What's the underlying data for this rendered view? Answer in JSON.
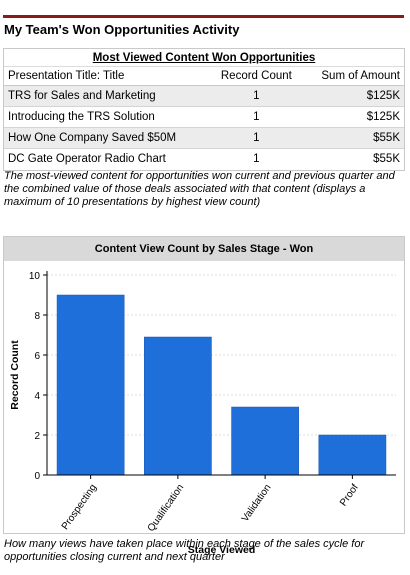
{
  "page": {
    "title": "My Team's Won Opportunities Activity"
  },
  "report": {
    "header": "Most Viewed Content Won Opportunities",
    "columns": [
      "Presentation Title: Title",
      "Record Count",
      "Sum of Amount"
    ],
    "rows": [
      {
        "title": "TRS for Sales and Marketing",
        "count": "1",
        "amount": "$125K"
      },
      {
        "title": "Introducing the TRS Solution",
        "count": "1",
        "amount": "$125K"
      },
      {
        "title": "How One Company Saved $50M",
        "count": "1",
        "amount": "$55K"
      },
      {
        "title": "DC Gate Operator Radio Chart",
        "count": "1",
        "amount": "$55K"
      }
    ],
    "caption": "The most-viewed content for opportunities won current and previous quarter and the combined value of those deals associated with that content (displays a maximum of 10 presentations by highest view count)"
  },
  "chart_panel": {
    "caption": "How many views have taken place within each stage of the sales cycle for opportunities closing current and next quarter"
  },
  "chart_data": {
    "type": "bar",
    "title": "Content View Count by Sales Stage - Won",
    "xlabel": "Stage Viewed",
    "ylabel": "Record Count",
    "categories": [
      "Prospecting",
      "Qualification",
      "Validation",
      "Proof"
    ],
    "values": [
      9,
      6.9,
      3.4,
      2
    ],
    "ylim": [
      0,
      10
    ],
    "yticks": [
      0,
      2,
      4,
      6,
      8,
      10
    ],
    "grid": true,
    "bar_color": "#1e6fd9"
  },
  "colors": {
    "title_rule": "#8b1a1a",
    "row_shade": "#ececec",
    "chart_header_bg": "#d9d9d9"
  }
}
